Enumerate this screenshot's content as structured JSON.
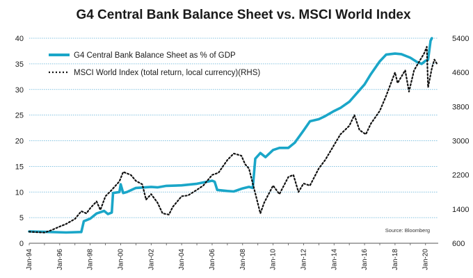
{
  "chart_data": {
    "type": "line",
    "title": "G4 Central Bank Balance Sheet vs. MSCI World Index",
    "source": "Source: Bloomberg",
    "legend_position": "top-left",
    "grid": {
      "horizontal": true,
      "style": "dotted",
      "color": "#5aaed6"
    },
    "x_axis": {
      "type": "date",
      "range": [
        "1994-01",
        "2020-11"
      ],
      "tick_labels": [
        "Jan-94",
        "Jan-96",
        "Jan-98",
        "Jan-00",
        "Jan-02",
        "Jan-04",
        "Jan-06",
        "Jan-08",
        "Jan-10",
        "Jan-12",
        "Jan-14",
        "Jan-16",
        "Jan-18",
        "Jan-20"
      ],
      "tick_values": [
        "1994-01",
        "1996-01",
        "1998-01",
        "2000-01",
        "2002-01",
        "2004-01",
        "2006-01",
        "2008-01",
        "2010-01",
        "2012-01",
        "2014-01",
        "2016-01",
        "2018-01",
        "2020-01"
      ]
    },
    "y_axis_left": {
      "range": [
        0,
        40
      ],
      "ticks": [
        0,
        5,
        10,
        15,
        20,
        25,
        30,
        35,
        40
      ]
    },
    "y_axis_right": {
      "range": [
        600,
        5400
      ],
      "ticks": [
        600,
        1400,
        2200,
        3000,
        3800,
        4600,
        5400
      ]
    },
    "series": [
      {
        "name": "G4 Central Bank Balance Sheet as % of GDP",
        "axis": "left",
        "color": "#1aa6c8",
        "style": "solid",
        "points": [
          [
            "1994-01",
            2.3
          ],
          [
            "1995-06",
            2.2
          ],
          [
            "1996-06",
            2.1
          ],
          [
            "1997-06",
            2.2
          ],
          [
            "1997-08",
            4.3
          ],
          [
            "1998-01",
            4.8
          ],
          [
            "1998-06",
            5.8
          ],
          [
            "1998-12",
            6.3
          ],
          [
            "1999-03",
            5.7
          ],
          [
            "1999-06",
            6.0
          ],
          [
            "1999-07",
            9.8
          ],
          [
            "1999-12",
            10.0
          ],
          [
            "2000-01",
            11.5
          ],
          [
            "2000-03",
            9.8
          ],
          [
            "2000-06",
            10.0
          ],
          [
            "2001-01",
            10.8
          ],
          [
            "2002-01",
            11.0
          ],
          [
            "2002-06",
            10.9
          ],
          [
            "2003-01",
            11.2
          ],
          [
            "2004-01",
            11.3
          ],
          [
            "2005-01",
            11.6
          ],
          [
            "2006-01",
            12.2
          ],
          [
            "2006-03",
            12.0
          ],
          [
            "2006-05",
            10.4
          ],
          [
            "2007-01",
            10.2
          ],
          [
            "2007-06",
            10.1
          ],
          [
            "2008-01",
            10.7
          ],
          [
            "2008-06",
            11.0
          ],
          [
            "2008-09",
            10.8
          ],
          [
            "2008-11",
            16.5
          ],
          [
            "2009-03",
            17.6
          ],
          [
            "2009-07",
            16.8
          ],
          [
            "2010-01",
            18.2
          ],
          [
            "2010-06",
            18.6
          ],
          [
            "2011-01",
            18.6
          ],
          [
            "2011-06",
            19.6
          ],
          [
            "2012-01",
            22.0
          ],
          [
            "2012-06",
            23.8
          ],
          [
            "2013-01",
            24.2
          ],
          [
            "2013-06",
            24.8
          ],
          [
            "2014-01",
            25.8
          ],
          [
            "2014-06",
            26.4
          ],
          [
            "2015-01",
            27.6
          ],
          [
            "2015-06",
            29.0
          ],
          [
            "2016-01",
            31.0
          ],
          [
            "2016-06",
            33.0
          ],
          [
            "2017-01",
            35.5
          ],
          [
            "2017-06",
            36.8
          ],
          [
            "2018-01",
            37.0
          ],
          [
            "2018-06",
            36.9
          ],
          [
            "2019-01",
            36.2
          ],
          [
            "2019-06",
            35.4
          ],
          [
            "2019-10",
            35.0
          ],
          [
            "2020-01",
            35.6
          ],
          [
            "2020-03",
            35.8
          ],
          [
            "2020-05",
            39.5
          ],
          [
            "2020-06",
            40.0
          ]
        ]
      },
      {
        "name": "MSCI World Index (total return, local currency)(RHS)",
        "axis": "right",
        "color": "#111111",
        "style": "dotted",
        "points": [
          [
            "1994-01",
            870
          ],
          [
            "1994-06",
            860
          ],
          [
            "1995-01",
            850
          ],
          [
            "1995-06",
            900
          ],
          [
            "1996-01",
            990
          ],
          [
            "1996-06",
            1050
          ],
          [
            "1997-01",
            1170
          ],
          [
            "1997-06",
            1350
          ],
          [
            "1997-10",
            1300
          ],
          [
            "1998-01",
            1420
          ],
          [
            "1998-06",
            1580
          ],
          [
            "1998-09",
            1380
          ],
          [
            "1999-01",
            1700
          ],
          [
            "1999-06",
            1850
          ],
          [
            "1999-12",
            2050
          ],
          [
            "2000-03",
            2270
          ],
          [
            "2000-09",
            2200
          ],
          [
            "2001-01",
            2060
          ],
          [
            "2001-06",
            1980
          ],
          [
            "2001-09",
            1620
          ],
          [
            "2002-01",
            1750
          ],
          [
            "2002-06",
            1550
          ],
          [
            "2002-10",
            1300
          ],
          [
            "2003-03",
            1270
          ],
          [
            "2003-06",
            1450
          ],
          [
            "2004-01",
            1700
          ],
          [
            "2004-06",
            1720
          ],
          [
            "2005-01",
            1850
          ],
          [
            "2005-06",
            1950
          ],
          [
            "2006-01",
            2200
          ],
          [
            "2006-06",
            2250
          ],
          [
            "2007-01",
            2550
          ],
          [
            "2007-06",
            2700
          ],
          [
            "2007-12",
            2650
          ],
          [
            "2008-03",
            2450
          ],
          [
            "2008-06",
            2350
          ],
          [
            "2008-09",
            2000
          ],
          [
            "2009-03",
            1300
          ],
          [
            "2009-06",
            1550
          ],
          [
            "2010-01",
            1950
          ],
          [
            "2010-06",
            1750
          ],
          [
            "2011-01",
            2150
          ],
          [
            "2011-05",
            2200
          ],
          [
            "2011-09",
            1800
          ],
          [
            "2012-01",
            2000
          ],
          [
            "2012-06",
            1950
          ],
          [
            "2013-01",
            2350
          ],
          [
            "2013-06",
            2550
          ],
          [
            "2014-01",
            2900
          ],
          [
            "2014-06",
            3150
          ],
          [
            "2015-01",
            3350
          ],
          [
            "2015-05",
            3600
          ],
          [
            "2015-09",
            3250
          ],
          [
            "2016-02",
            3150
          ],
          [
            "2016-06",
            3400
          ],
          [
            "2017-01",
            3700
          ],
          [
            "2017-06",
            4050
          ],
          [
            "2018-01",
            4600
          ],
          [
            "2018-03",
            4350
          ],
          [
            "2018-09",
            4650
          ],
          [
            "2018-12",
            4150
          ],
          [
            "2019-04",
            4650
          ],
          [
            "2019-12",
            5050
          ],
          [
            "2020-02",
            5200
          ],
          [
            "2020-03",
            4250
          ],
          [
            "2020-06",
            4700
          ],
          [
            "2020-08",
            4900
          ],
          [
            "2020-10",
            4800
          ]
        ]
      }
    ]
  }
}
